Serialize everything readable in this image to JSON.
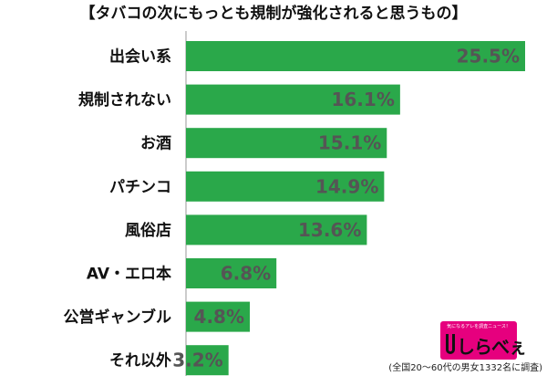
{
  "chart_data": {
    "type": "bar",
    "orientation": "horizontal",
    "title": "【タバコの次にもっとも規制が強化されると思うもの】",
    "categories": [
      "出会い系",
      "規制されない",
      "お酒",
      "パチンコ",
      "風俗店",
      "AV・エロ本",
      "公営ギャンブル",
      "それ以外"
    ],
    "values": [
      25.5,
      16.1,
      15.1,
      14.9,
      13.6,
      6.8,
      4.8,
      3.2
    ],
    "value_labels": [
      "25.5%",
      "16.1%",
      "15.1%",
      "14.9%",
      "13.6%",
      "6.8%",
      "4.8%",
      "3.2%"
    ],
    "xlim": [
      0,
      25.5
    ],
    "grid": false,
    "legend": "none",
    "bar_color": "#2aa84a",
    "value_label_color": "#555555"
  },
  "logo": {
    "tagline": "気になるアレを調査ニュース！",
    "text": "しらべぇ",
    "color": "#e6007e"
  },
  "footnote": "(全国20〜60代の男女1332名に調査)"
}
